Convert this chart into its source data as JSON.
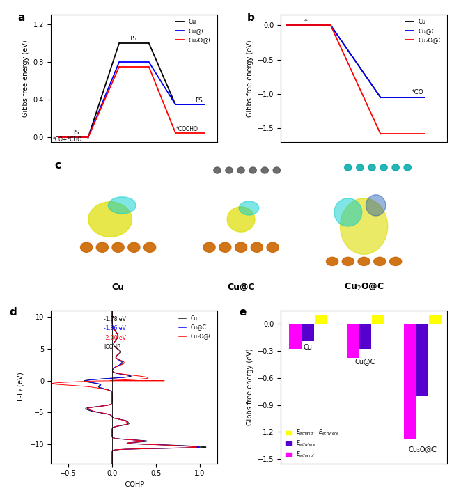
{
  "panel_a": {
    "ylabel": "Gibbs free energy (eV)",
    "ylim": [
      -0.05,
      1.3
    ],
    "yticks": [
      0.0,
      0.4,
      0.8,
      1.2
    ],
    "Cu": [
      0.0,
      1.0,
      0.35
    ],
    "CuC": [
      0.0,
      0.8,
      0.35
    ],
    "Cu2OC": [
      0.0,
      0.75,
      0.05
    ],
    "colors": {
      "Cu": "black",
      "CuC": "blue",
      "Cu2OC": "red"
    },
    "legend": [
      "Cu",
      "Cu@C",
      "Cu₂O@C"
    ]
  },
  "panel_b": {
    "ylabel": "Gibbs free energy (eV)",
    "ylim": [
      -1.7,
      0.15
    ],
    "yticks": [
      0.0,
      -0.5,
      -1.0,
      -1.5
    ],
    "Cu": [
      0.0,
      -1.05
    ],
    "CuC": [
      0.0,
      -1.05
    ],
    "Cu2OC": [
      0.0,
      -1.58
    ],
    "colors": {
      "Cu": "black",
      "CuC": "blue",
      "Cu2OC": "red"
    },
    "legend": [
      "Cu",
      "Cu@C",
      "Cu₂O@C"
    ]
  },
  "panel_d": {
    "xlabel": "-COHP",
    "ylabel": "E-E$_f$ (eV)",
    "xlim": [
      -0.7,
      1.2
    ],
    "ylim": [
      -13,
      11
    ],
    "xticks": [
      -0.5,
      0.0,
      0.5,
      1.0
    ],
    "yticks": [
      -10,
      -5,
      0,
      5,
      10
    ],
    "colors": {
      "Cu": "#111111",
      "CuC": "blue",
      "Cu2OC": "red"
    }
  },
  "panel_e": {
    "ylabel": "Gibbs free energy (eV)",
    "ylim": [
      -1.55,
      0.15
    ],
    "yticks": [
      0.0,
      -0.3,
      -0.6,
      -0.9,
      -1.2,
      -1.5
    ],
    "categories": [
      "Cu",
      "Cu@C",
      "Cu₂O@C"
    ],
    "Ediff": [
      0.1,
      0.1,
      0.1
    ],
    "Eethylene": [
      -0.18,
      -0.28,
      -0.8
    ],
    "Eethanol": [
      -0.28,
      -0.38,
      -1.28
    ],
    "color_diff": "#ffff00",
    "color_ethylene": "#5500cc",
    "color_ethanol": "#ff00ff"
  }
}
